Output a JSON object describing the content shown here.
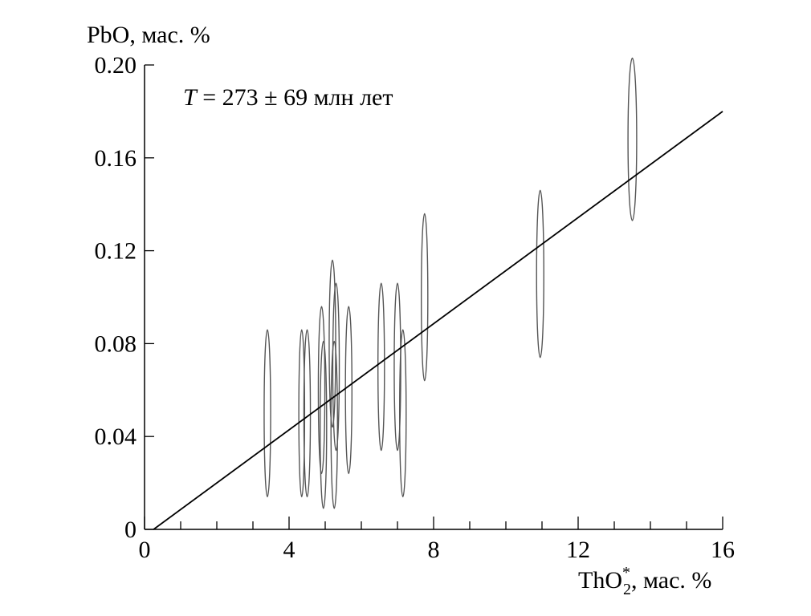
{
  "chart_data": {
    "type": "scatter",
    "title": "",
    "annotation": {
      "variable": "T",
      "text": " = 273 ± 69 млн лет"
    },
    "xlabel": {
      "base": "ThO",
      "subscript": "2",
      "superscript": "*",
      "rest": ", мас. %"
    },
    "ylabel": "PbO, мас. %",
    "xlim": [
      0,
      16
    ],
    "ylim": [
      0,
      0.2
    ],
    "x_ticks": [
      0,
      4,
      8,
      12,
      16
    ],
    "x_tick_labels": [
      "0",
      "4",
      "8",
      "12",
      "16"
    ],
    "x_minor_step": 1,
    "y_ticks": [
      0,
      0.04,
      0.08,
      0.12,
      0.16,
      0.2
    ],
    "y_tick_labels": [
      "0",
      "0.04",
      "0.08",
      "0.12",
      "0.16",
      "0.20"
    ],
    "grid": false,
    "isochron": {
      "x": [
        0.25,
        16
      ],
      "y": [
        0,
        0.18
      ]
    },
    "ellipses": [
      {
        "x": 3.4,
        "y": 0.05,
        "dx": 0.09,
        "dy": 0.036
      },
      {
        "x": 4.35,
        "y": 0.05,
        "dx": 0.08,
        "dy": 0.036
      },
      {
        "x": 4.5,
        "y": 0.05,
        "dx": 0.09,
        "dy": 0.036
      },
      {
        "x": 4.9,
        "y": 0.06,
        "dx": 0.09,
        "dy": 0.036
      },
      {
        "x": 4.95,
        "y": 0.045,
        "dx": 0.09,
        "dy": 0.036
      },
      {
        "x": 5.2,
        "y": 0.08,
        "dx": 0.09,
        "dy": 0.036
      },
      {
        "x": 5.25,
        "y": 0.045,
        "dx": 0.09,
        "dy": 0.036
      },
      {
        "x": 5.3,
        "y": 0.07,
        "dx": 0.09,
        "dy": 0.036
      },
      {
        "x": 5.65,
        "y": 0.06,
        "dx": 0.09,
        "dy": 0.036
      },
      {
        "x": 6.55,
        "y": 0.07,
        "dx": 0.09,
        "dy": 0.036
      },
      {
        "x": 7.0,
        "y": 0.07,
        "dx": 0.09,
        "dy": 0.036
      },
      {
        "x": 7.15,
        "y": 0.05,
        "dx": 0.09,
        "dy": 0.036
      },
      {
        "x": 7.75,
        "y": 0.1,
        "dx": 0.09,
        "dy": 0.036
      },
      {
        "x": 10.95,
        "y": 0.11,
        "dx": 0.1,
        "dy": 0.036
      },
      {
        "x": 13.5,
        "y": 0.168,
        "dx": 0.12,
        "dy": 0.035
      }
    ],
    "colors": {
      "axis": "#000000",
      "line": "#000000",
      "ellipse": "#555555"
    }
  }
}
